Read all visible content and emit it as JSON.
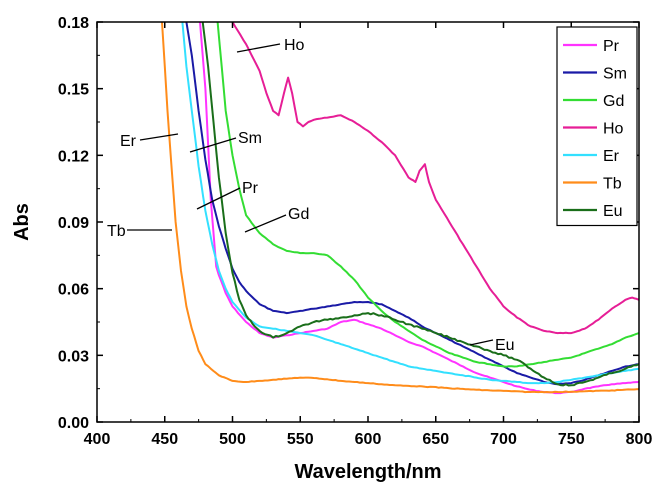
{
  "chart_data": {
    "type": "line",
    "xlabel": "Wavelength/nm",
    "ylabel": "Abs",
    "xlim": [
      400,
      800
    ],
    "ylim": [
      0,
      0.18
    ],
    "xticks": [
      "400",
      "450",
      "500",
      "550",
      "600",
      "650",
      "700",
      "750",
      "800"
    ],
    "yticks": [
      "0.00",
      "0.03",
      "0.06",
      "0.09",
      "0.12",
      "0.15",
      "0.18"
    ],
    "legend_position": "top-right",
    "series": [
      {
        "name": "Pr",
        "color": "#ff33ff",
        "x": [
          476,
          480,
          484,
          486,
          488,
          490,
          495,
          500,
          510,
          520,
          530,
          540,
          550,
          560,
          570,
          580,
          590,
          600,
          610,
          620,
          630,
          640,
          650,
          660,
          670,
          680,
          690,
          700,
          710,
          720,
          730,
          740,
          750,
          760,
          770,
          780,
          790,
          800
        ],
        "y": [
          0.18,
          0.15,
          0.1,
          0.085,
          0.07,
          0.066,
          0.058,
          0.052,
          0.045,
          0.04,
          0.038,
          0.039,
          0.04,
          0.041,
          0.042,
          0.045,
          0.046,
          0.044,
          0.042,
          0.039,
          0.036,
          0.034,
          0.031,
          0.028,
          0.025,
          0.022,
          0.02,
          0.018,
          0.016,
          0.0145,
          0.0135,
          0.013,
          0.0135,
          0.015,
          0.016,
          0.017,
          0.0175,
          0.018
        ]
      },
      {
        "name": "Sm",
        "color": "#1a1aa6",
        "x": [
          466,
          470,
          475,
          480,
          485,
          490,
          495,
          500,
          505,
          510,
          520,
          530,
          540,
          550,
          560,
          570,
          580,
          590,
          600,
          610,
          620,
          630,
          640,
          650,
          660,
          670,
          680,
          690,
          700,
          710,
          720,
          730,
          740,
          750,
          760,
          770,
          780,
          790,
          800
        ],
        "y": [
          0.18,
          0.165,
          0.14,
          0.118,
          0.1,
          0.088,
          0.078,
          0.069,
          0.063,
          0.059,
          0.053,
          0.05,
          0.049,
          0.05,
          0.051,
          0.052,
          0.053,
          0.054,
          0.054,
          0.053,
          0.05,
          0.047,
          0.043,
          0.04,
          0.037,
          0.034,
          0.031,
          0.028,
          0.025,
          0.022,
          0.02,
          0.018,
          0.017,
          0.0175,
          0.019,
          0.021,
          0.023,
          0.025,
          0.026
        ]
      },
      {
        "name": "Gd",
        "color": "#33dd33",
        "x": [
          489,
          492,
          495,
          500,
          505,
          510,
          520,
          530,
          540,
          550,
          560,
          570,
          580,
          590,
          600,
          610,
          620,
          630,
          640,
          650,
          660,
          670,
          680,
          690,
          700,
          710,
          720,
          730,
          740,
          750,
          760,
          770,
          780,
          790,
          800
        ],
        "y": [
          0.18,
          0.16,
          0.14,
          0.12,
          0.105,
          0.093,
          0.085,
          0.08,
          0.077,
          0.076,
          0.076,
          0.075,
          0.07,
          0.064,
          0.056,
          0.05,
          0.045,
          0.041,
          0.037,
          0.034,
          0.031,
          0.029,
          0.027,
          0.026,
          0.025,
          0.025,
          0.026,
          0.027,
          0.028,
          0.029,
          0.031,
          0.033,
          0.035,
          0.038,
          0.04
        ]
      },
      {
        "name": "Ho",
        "color": "#e61e96",
        "x": [
          500,
          510,
          520,
          525,
          530,
          534,
          538,
          541,
          544,
          548,
          552,
          556,
          560,
          570,
          580,
          590,
          600,
          610,
          620,
          630,
          635,
          638,
          642,
          645,
          650,
          660,
          670,
          680,
          690,
          700,
          710,
          720,
          730,
          740,
          750,
          760,
          770,
          780,
          790,
          795,
          800
        ],
        "y": [
          0.18,
          0.17,
          0.158,
          0.148,
          0.14,
          0.138,
          0.148,
          0.155,
          0.148,
          0.135,
          0.133,
          0.135,
          0.136,
          0.137,
          0.138,
          0.135,
          0.131,
          0.126,
          0.12,
          0.11,
          0.108,
          0.113,
          0.116,
          0.108,
          0.1,
          0.09,
          0.08,
          0.07,
          0.06,
          0.052,
          0.047,
          0.043,
          0.041,
          0.04,
          0.04,
          0.042,
          0.046,
          0.051,
          0.055,
          0.056,
          0.055
        ]
      },
      {
        "name": "Er",
        "color": "#33e0ff",
        "x": [
          463,
          466,
          470,
          475,
          480,
          485,
          490,
          495,
          500,
          510,
          520,
          530,
          540,
          550,
          560,
          570,
          580,
          590,
          600,
          610,
          620,
          630,
          640,
          650,
          660,
          670,
          680,
          690,
          700,
          710,
          720,
          730,
          740,
          750,
          760,
          770,
          780,
          790,
          800
        ],
        "y": [
          0.18,
          0.16,
          0.14,
          0.115,
          0.095,
          0.08,
          0.068,
          0.06,
          0.054,
          0.047,
          0.043,
          0.042,
          0.041,
          0.04,
          0.039,
          0.037,
          0.035,
          0.033,
          0.031,
          0.029,
          0.027,
          0.025,
          0.024,
          0.023,
          0.022,
          0.021,
          0.02,
          0.019,
          0.0185,
          0.018,
          0.0175,
          0.0175,
          0.018,
          0.019,
          0.02,
          0.021,
          0.022,
          0.023,
          0.024
        ]
      },
      {
        "name": "Tb",
        "color": "#ff8c1a",
        "x": [
          448,
          450,
          452,
          455,
          458,
          462,
          466,
          470,
          475,
          480,
          490,
          500,
          510,
          520,
          530,
          540,
          550,
          560,
          570,
          580,
          590,
          600,
          620,
          640,
          660,
          680,
          700,
          720,
          740,
          760,
          780,
          800
        ],
        "y": [
          0.18,
          0.16,
          0.14,
          0.115,
          0.09,
          0.068,
          0.052,
          0.042,
          0.032,
          0.026,
          0.021,
          0.0185,
          0.018,
          0.0185,
          0.019,
          0.0195,
          0.02,
          0.0198,
          0.0192,
          0.0185,
          0.018,
          0.0175,
          0.0165,
          0.016,
          0.0152,
          0.0145,
          0.014,
          0.0135,
          0.0135,
          0.0138,
          0.0142,
          0.0148
        ]
      },
      {
        "name": "Eu",
        "color": "#1a6e1a",
        "x": [
          478,
          482,
          486,
          490,
          495,
          500,
          505,
          510,
          515,
          520,
          530,
          540,
          550,
          560,
          570,
          580,
          590,
          600,
          610,
          620,
          630,
          640,
          650,
          660,
          670,
          680,
          690,
          700,
          710,
          720,
          730,
          740,
          750,
          760,
          770,
          780,
          790,
          800
        ],
        "y": [
          0.18,
          0.16,
          0.135,
          0.11,
          0.085,
          0.067,
          0.055,
          0.048,
          0.044,
          0.041,
          0.038,
          0.04,
          0.043,
          0.045,
          0.046,
          0.047,
          0.048,
          0.049,
          0.048,
          0.046,
          0.044,
          0.042,
          0.04,
          0.038,
          0.036,
          0.034,
          0.032,
          0.03,
          0.028,
          0.024,
          0.02,
          0.017,
          0.0165,
          0.018,
          0.02,
          0.022,
          0.024,
          0.026
        ]
      }
    ],
    "annotations": [
      {
        "text": "Ho"
      },
      {
        "text": "Er"
      },
      {
        "text": "Sm"
      },
      {
        "text": "Pr"
      },
      {
        "text": "Gd"
      },
      {
        "text": "Tb"
      },
      {
        "text": "Eu"
      }
    ]
  }
}
